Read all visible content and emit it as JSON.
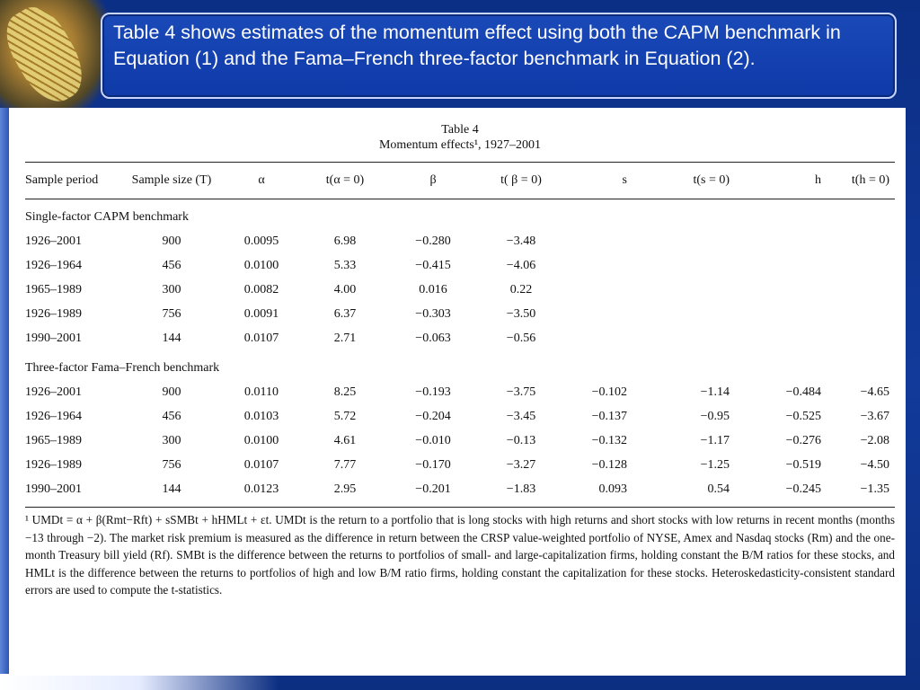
{
  "slide": {
    "header": "Table 4 shows estimates of the momentum effect using both the CAPM benchmark in Equation (1) and the Fama–French three-factor benchmark in Equation (2)."
  },
  "table": {
    "title": "Table 4",
    "subtitle": "Momentum effects¹, 1927–2001",
    "columns": [
      "Sample period",
      "Sample size (T)",
      "α",
      "t(α = 0)",
      "β",
      "t( β = 0)",
      "s",
      "t(s = 0)",
      "h",
      "t(h = 0)"
    ],
    "sections": [
      {
        "label": "Single-factor CAPM benchmark",
        "rows": [
          [
            "1926–2001",
            "900",
            "0.0095",
            "6.98",
            "−0.280",
            "−3.48",
            "",
            "",
            "",
            ""
          ],
          [
            "1926–1964",
            "456",
            "0.0100",
            "5.33",
            "−0.415",
            "−4.06",
            "",
            "",
            "",
            ""
          ],
          [
            "1965–1989",
            "300",
            "0.0082",
            "4.00",
            "0.016",
            "0.22",
            "",
            "",
            "",
            ""
          ],
          [
            "1926–1989",
            "756",
            "0.0091",
            "6.37",
            "−0.303",
            "−3.50",
            "",
            "",
            "",
            ""
          ],
          [
            "1990–2001",
            "144",
            "0.0107",
            "2.71",
            "−0.063",
            "−0.56",
            "",
            "",
            "",
            ""
          ]
        ]
      },
      {
        "label": "Three-factor Fama–French benchmark",
        "rows": [
          [
            "1926–2001",
            "900",
            "0.0110",
            "8.25",
            "−0.193",
            "−3.75",
            "−0.102",
            "−1.14",
            "−0.484",
            "−4.65"
          ],
          [
            "1926–1964",
            "456",
            "0.0103",
            "5.72",
            "−0.204",
            "−3.45",
            "−0.137",
            "−0.95",
            "−0.525",
            "−3.67"
          ],
          [
            "1965–1989",
            "300",
            "0.0100",
            "4.61",
            "−0.010",
            "−0.13",
            "−0.132",
            "−1.17",
            "−0.276",
            "−2.08"
          ],
          [
            "1926–1989",
            "756",
            "0.0107",
            "7.77",
            "−0.170",
            "−3.27",
            "−0.128",
            "−1.25",
            "−0.519",
            "−4.50"
          ],
          [
            "1990–2001",
            "144",
            "0.0123",
            "2.95",
            "−0.201",
            "−1.83",
            "0.093",
            "0.54",
            "−0.245",
            "−1.35"
          ]
        ]
      }
    ],
    "footnote": "¹ UMDt = α + β(Rmt−Rft) + sSMBt + hHMLt + εt. UMDt is the return to a portfolio that is long stocks with high returns and short stocks with low returns in recent months (months −13 through −2). The market risk premium is measured as the difference in return between the CRSP value-weighted portfolio of NYSE, Amex and Nasdaq stocks (Rm) and the one-month Treasury bill yield (Rf). SMBt is the difference between the returns to portfolios of small- and large-capitalization firms, holding constant the B/M ratios for these stocks, and HMLt is the difference between the returns to portfolios of high and low B/M ratio firms, holding constant the capitalization for these stocks. Heteroskedasticity-consistent standard errors are used to compute the t-statistics."
  }
}
